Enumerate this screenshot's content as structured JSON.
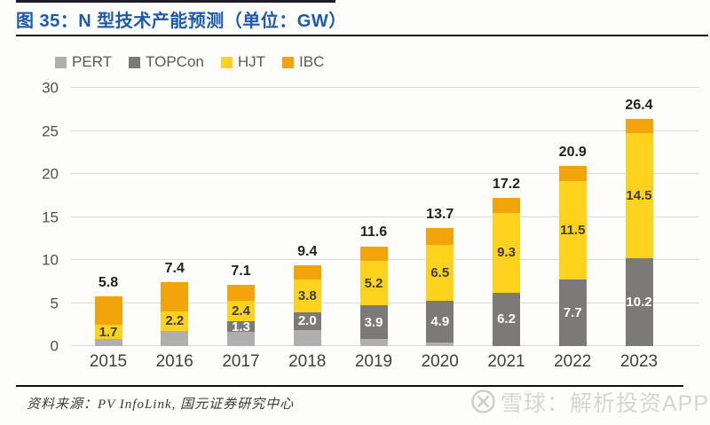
{
  "header": {
    "title": "图 35：N 型技术产能预测（单位：GW）"
  },
  "chart_data": {
    "type": "bar",
    "stacked": true,
    "title": "N 型技术产能预测",
    "unit": "GW",
    "categories": [
      "2015",
      "2016",
      "2017",
      "2018",
      "2019",
      "2020",
      "2021",
      "2022",
      "2023"
    ],
    "series": [
      {
        "name": "PERT",
        "color": "#AFAFAF",
        "label_color": "#ffffff",
        "show_value_labels": false,
        "values": [
          0.8,
          1.8,
          1.6,
          1.9,
          0.8,
          0.4,
          0,
          0,
          0
        ]
      },
      {
        "name": "TOPCon",
        "color": "#7C7979",
        "label_color": "#ffffff",
        "show_value_labels": true,
        "values": [
          0,
          0,
          1.3,
          2.0,
          3.9,
          4.9,
          6.2,
          7.7,
          10.2
        ]
      },
      {
        "name": "HJT",
        "color": "#FFD21E",
        "label_color": "#3d3d3d",
        "show_value_labels": true,
        "values": [
          1.7,
          2.2,
          2.4,
          3.8,
          5.2,
          6.5,
          9.3,
          11.5,
          14.5
        ]
      },
      {
        "name": "IBC",
        "color": "#F2A40A",
        "label_color": "#3d3d3d",
        "show_value_labels": false,
        "values": [
          3.3,
          3.4,
          1.8,
          1.7,
          1.7,
          1.9,
          1.7,
          1.7,
          1.7
        ]
      }
    ],
    "totals": [
      5.8,
      7.4,
      7.1,
      9.4,
      11.6,
      13.7,
      17.2,
      20.9,
      26.4
    ],
    "ylim": [
      0,
      30
    ],
    "ytick_step": 5,
    "grid": true,
    "legend_position": "top-left"
  },
  "footer": {
    "source": "资料来源：PV InfoLink, 国元证券研究中心"
  },
  "watermark": {
    "text": "雪球：解析投资APP",
    "logo": "xueqiu-snowball-logo"
  },
  "colors": {
    "title_accent": "#1E5AA9",
    "rule": "#15151d",
    "gridline": "#D9D9D9",
    "axis_text": "#4F4F4F",
    "watermark": "#D5D5D5"
  }
}
